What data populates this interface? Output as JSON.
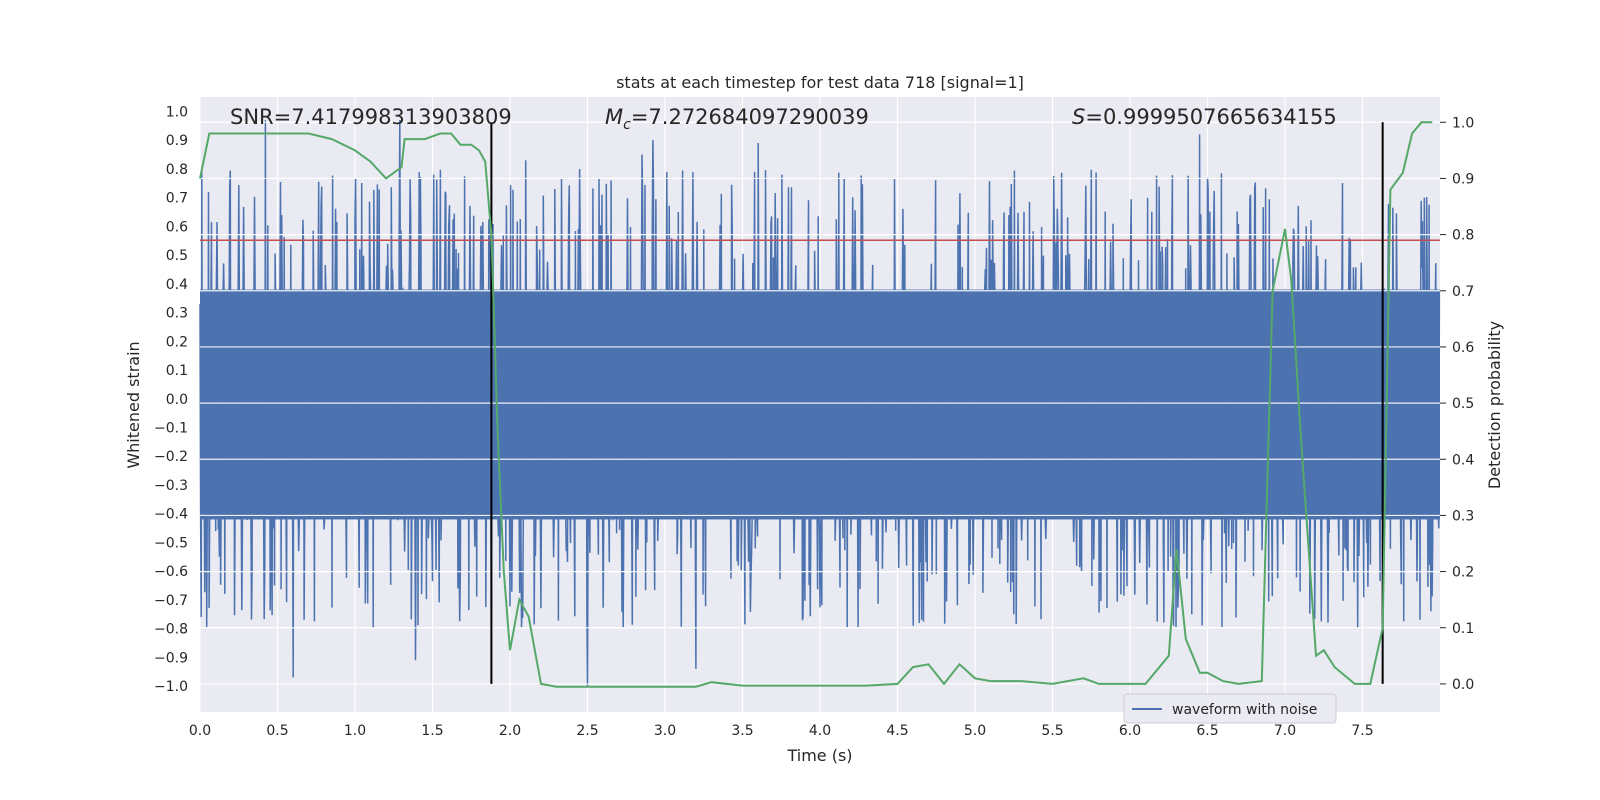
{
  "chart_data": {
    "type": "line",
    "title": "stats at each timestep for test data 718 [signal=1]",
    "xlabel": "Time (s)",
    "ylabel": "Whitened strain",
    "y2label": "Detection probability",
    "xlim": [
      0.0,
      8.0
    ],
    "ylim": [
      -1.09,
      1.05
    ],
    "y2lim": [
      -0.05,
      1.045
    ],
    "xticks": [
      0.0,
      0.5,
      1.0,
      1.5,
      2.0,
      2.5,
      3.0,
      3.5,
      4.0,
      4.5,
      5.0,
      5.5,
      6.0,
      6.5,
      7.0,
      7.5
    ],
    "xtick_labels": [
      "0.0",
      "0.5",
      "1.0",
      "1.5",
      "2.0",
      "2.5",
      "3.0",
      "3.5",
      "4.0",
      "4.5",
      "5.0",
      "5.5",
      "6.0",
      "6.5",
      "7.0",
      "7.5"
    ],
    "yticks": [
      1.0,
      0.9,
      0.8,
      0.7,
      0.6,
      0.5,
      0.4,
      0.3,
      0.2,
      0.1,
      0.0,
      -0.1,
      -0.2,
      -0.3,
      -0.4,
      -0.5,
      -0.6,
      -0.7,
      -0.8,
      -0.9,
      -1.0
    ],
    "ytick_labels": [
      "1.0",
      "0.9",
      "0.8",
      "0.7",
      "0.6",
      "0.5",
      "0.4",
      "0.3",
      "0.2",
      "0.1",
      "0.0",
      "−0.1",
      "−0.2",
      "−0.3",
      "−0.4",
      "−0.5",
      "−0.6",
      "−0.7",
      "−0.8",
      "−0.9",
      "−1.0"
    ],
    "y2ticks": [
      1.0,
      0.9,
      0.8,
      0.7,
      0.6,
      0.5,
      0.4,
      0.3,
      0.2,
      0.1,
      0.0
    ],
    "y2tick_labels": [
      "1.0",
      "0.9",
      "0.8",
      "0.7",
      "0.6",
      "0.5",
      "0.4",
      "0.3",
      "0.2",
      "0.1",
      "0.0"
    ],
    "annotations": {
      "snr": "SNR=7.417998313903809",
      "mc_symbol": "M",
      "mc_sub": "c",
      "mc_value": "=7.272684097290039",
      "s_symbol": "S",
      "s_value": "=0.9999507665634155"
    },
    "threshold_y2": 0.79,
    "vertical_lines_x": [
      1.88,
      7.63
    ],
    "waveform": {
      "name": "waveform with noise",
      "samples": 2048,
      "dense_band": [
        -0.42,
        0.38
      ],
      "typical_peak_range": [
        0.45,
        0.8
      ],
      "typical_trough_range": [
        -0.45,
        -0.8
      ],
      "extreme_peaks": [
        {
          "x": 0.42,
          "y": 0.97
        },
        {
          "x": 1.29,
          "y": 0.97
        },
        {
          "x": 2.1,
          "y": 0.83
        },
        {
          "x": 2.85,
          "y": 0.85
        },
        {
          "x": 2.92,
          "y": 0.9
        },
        {
          "x": 3.6,
          "y": 0.89
        },
        {
          "x": 6.45,
          "y": 0.92
        },
        {
          "x": 7.9,
          "y": 0.7
        }
      ],
      "extreme_troughs": [
        {
          "x": 0.6,
          "y": -0.97
        },
        {
          "x": 1.39,
          "y": -0.91
        },
        {
          "x": 2.5,
          "y": -1.0
        },
        {
          "x": 3.2,
          "y": -0.94
        },
        {
          "x": 4.6,
          "y": -0.79
        },
        {
          "x": 6.4,
          "y": -0.75
        }
      ],
      "color": "#4c72b0"
    },
    "probability": {
      "name": "detection probability",
      "color": "#55a868",
      "x": [
        0.0,
        0.06,
        0.14,
        0.3,
        0.5,
        0.7,
        0.85,
        1.0,
        1.1,
        1.2,
        1.3,
        1.32,
        1.45,
        1.55,
        1.62,
        1.68,
        1.75,
        1.8,
        1.84,
        1.88,
        1.92,
        1.96,
        2.0,
        2.06,
        2.12,
        2.2,
        2.3,
        2.6,
        3.0,
        3.2,
        3.3,
        3.5,
        4.0,
        4.3,
        4.5,
        4.6,
        4.7,
        4.8,
        4.9,
        5.0,
        5.1,
        5.3,
        5.5,
        5.7,
        5.8,
        6.0,
        6.1,
        6.25,
        6.3,
        6.36,
        6.45,
        6.5,
        6.6,
        6.7,
        6.85,
        6.92,
        7.0,
        7.04,
        7.1,
        7.2,
        7.25,
        7.32,
        7.45,
        7.55,
        7.63,
        7.68,
        7.76,
        7.82,
        7.88,
        7.95
      ],
      "y": [
        0.9,
        0.98,
        0.98,
        0.98,
        0.98,
        0.98,
        0.97,
        0.95,
        0.93,
        0.9,
        0.92,
        0.97,
        0.97,
        0.98,
        0.98,
        0.96,
        0.96,
        0.95,
        0.93,
        0.8,
        0.45,
        0.2,
        0.06,
        0.15,
        0.12,
        0.0,
        -0.005,
        -0.005,
        -0.005,
        -0.005,
        0.003,
        -0.003,
        -0.003,
        -0.003,
        0.0,
        0.03,
        0.035,
        0.0,
        0.035,
        0.01,
        0.005,
        0.005,
        0.0,
        0.01,
        0.0,
        0.0,
        0.0,
        0.05,
        0.24,
        0.08,
        0.02,
        0.02,
        0.005,
        0.0,
        0.005,
        0.7,
        0.81,
        0.72,
        0.45,
        0.05,
        0.06,
        0.03,
        0.0,
        0.0,
        0.1,
        0.88,
        0.91,
        0.98,
        1.0,
        1.0
      ]
    },
    "threshold_color": "#c44e52",
    "legend": {
      "position": "lower-right",
      "entries": [
        "waveform with noise"
      ]
    }
  }
}
